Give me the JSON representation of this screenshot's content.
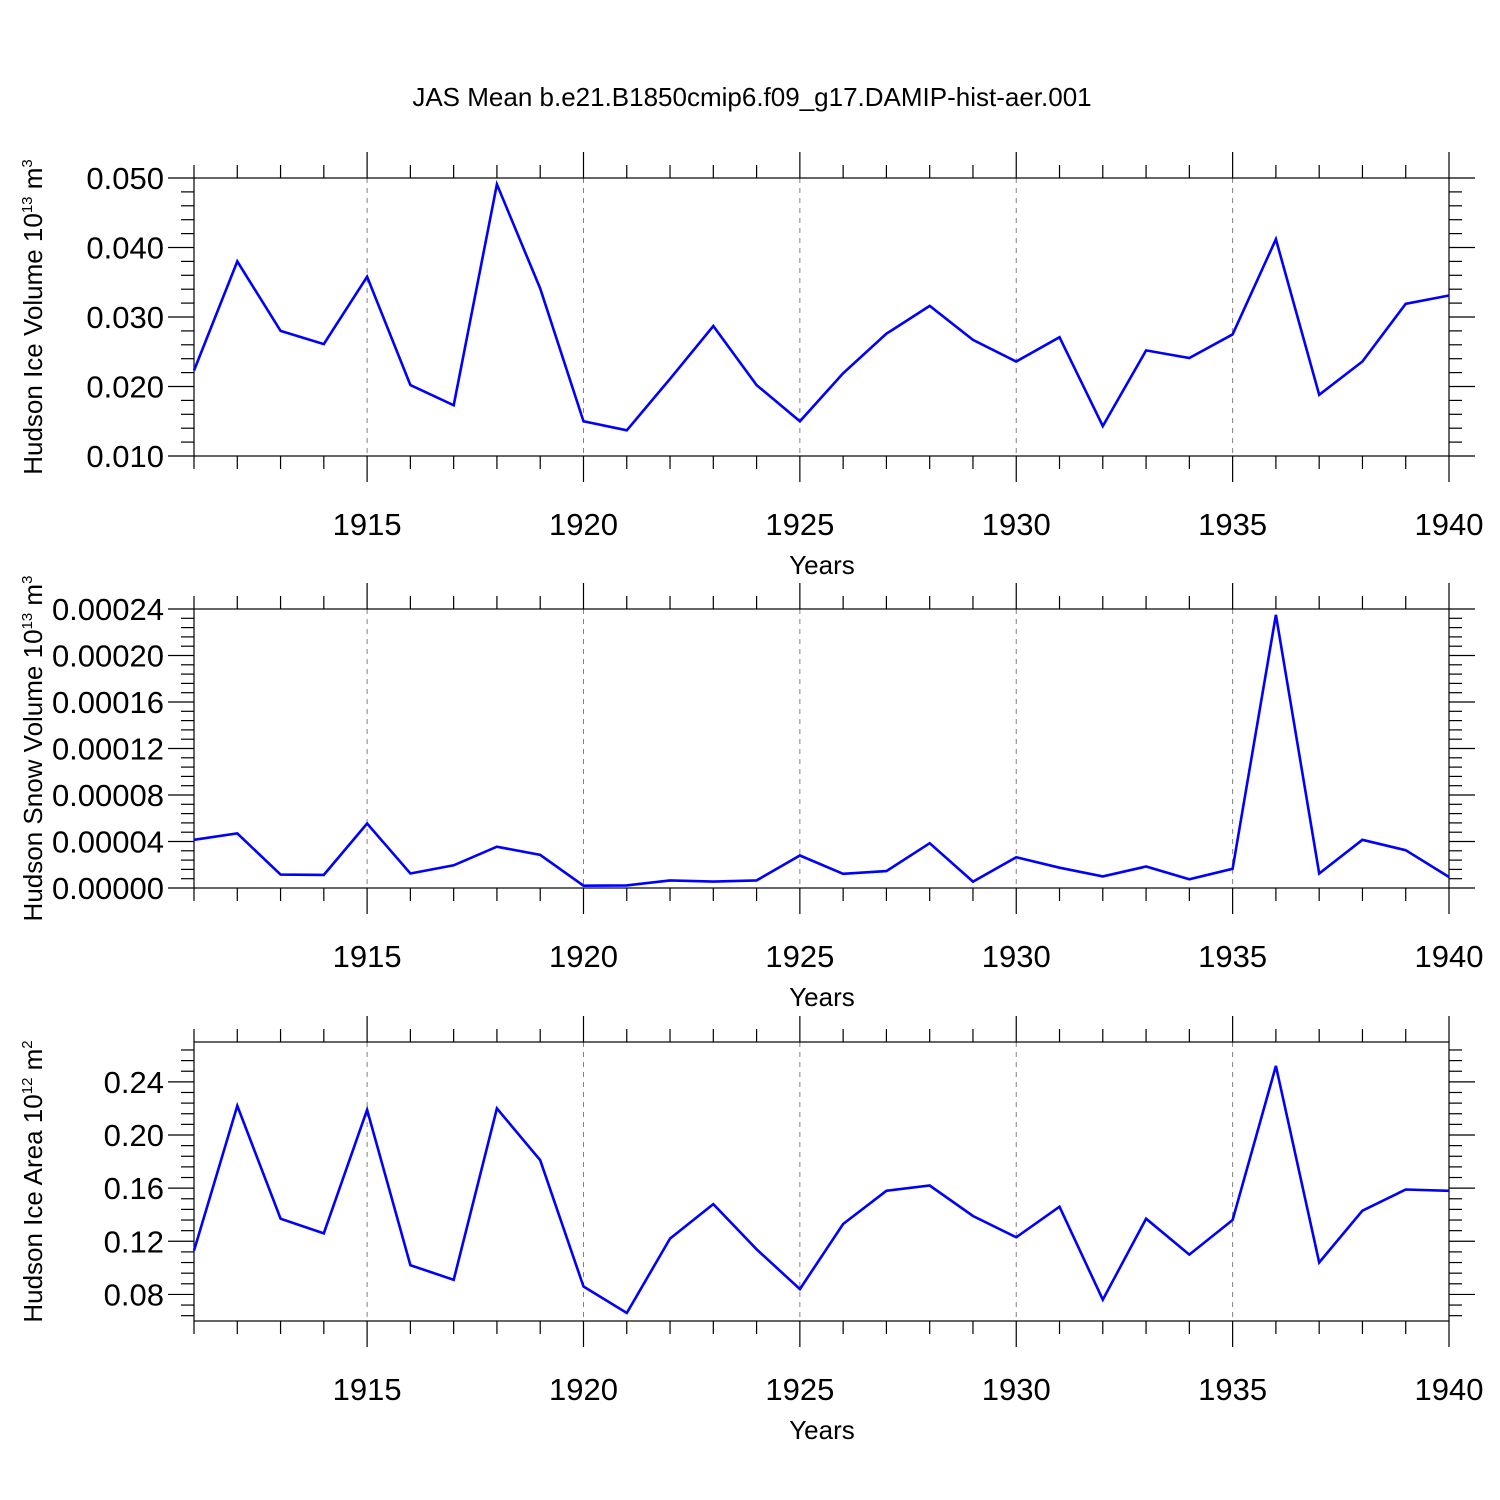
{
  "title": "JAS Mean b.e21.B1850cmip6.f09_g17.DAMIP-hist-aer.001",
  "colors": {
    "line": "#0000ff",
    "axis": "#000000",
    "grid": "#808080"
  },
  "chart_data": [
    {
      "type": "line",
      "ylabel": "Hudson Ice Volume 10",
      "ylabel_exp": "13",
      "ylabel_unit": " m",
      "ylabel_unit_exp": "3",
      "xlabel": "Years",
      "xlim": [
        1911,
        1940
      ],
      "ylim": [
        0.01,
        0.05
      ],
      "yticks": [
        0.01,
        0.02,
        0.03,
        0.04,
        0.05
      ],
      "ytick_labels": [
        "0.010",
        "0.020",
        "0.030",
        "0.040",
        "0.050"
      ],
      "xticks": [
        1915,
        1920,
        1925,
        1930,
        1935,
        1940
      ],
      "xtick_labels": [
        "1915",
        "1920",
        "1925",
        "1930",
        "1935",
        "1940"
      ],
      "grid": "vertical dashed at major x ticks",
      "x": [
        1911,
        1912,
        1913,
        1914,
        1915,
        1916,
        1917,
        1918,
        1919,
        1920,
        1921,
        1922,
        1923,
        1924,
        1925,
        1926,
        1927,
        1928,
        1929,
        1930,
        1931,
        1932,
        1933,
        1934,
        1935,
        1936,
        1937,
        1938,
        1939,
        1940
      ],
      "values": [
        0.0223,
        0.038,
        0.028,
        0.0261,
        0.0358,
        0.0202,
        0.0173,
        0.0491,
        0.0341,
        0.015,
        0.0137,
        0.0211,
        0.0287,
        0.0202,
        0.015,
        0.0219,
        0.0276,
        0.0316,
        0.0267,
        0.0236,
        0.0271,
        0.0143,
        0.0252,
        0.0241,
        0.0275,
        0.0412,
        0.0188,
        0.0236,
        0.0319,
        0.0331
      ]
    },
    {
      "type": "line",
      "ylabel": "Hudson Snow Volume 10",
      "ylabel_exp": "13",
      "ylabel_unit": " m",
      "ylabel_unit_exp": "3",
      "xlabel": "Years",
      "xlim": [
        1911,
        1940
      ],
      "ylim": [
        0.0,
        0.00024
      ],
      "yticks": [
        0.0,
        4e-05,
        8e-05,
        0.00012,
        0.00016,
        0.0002,
        0.00024
      ],
      "ytick_labels": [
        "0.00000",
        "0.00004",
        "0.00008",
        "0.00012",
        "0.00016",
        "0.00020",
        "0.00024"
      ],
      "xticks": [
        1915,
        1920,
        1925,
        1930,
        1935,
        1940
      ],
      "xtick_labels": [
        "1915",
        "1920",
        "1925",
        "1930",
        "1935",
        "1940"
      ],
      "grid": "vertical dashed at major x ticks",
      "x": [
        1911,
        1912,
        1913,
        1914,
        1915,
        1916,
        1917,
        1918,
        1919,
        1920,
        1921,
        1922,
        1923,
        1924,
        1925,
        1926,
        1927,
        1928,
        1929,
        1930,
        1931,
        1932,
        1933,
        1934,
        1935,
        1936,
        1937,
        1938,
        1939,
        1940
      ],
      "values": [
        4.15e-05,
        4.7e-05,
        1.15e-05,
        1.13e-05,
        5.55e-05,
        1.25e-05,
        1.95e-05,
        3.55e-05,
        2.85e-05,
        2e-06,
        2.2e-06,
        6.5e-06,
        5.5e-06,
        6.5e-06,
        2.8e-05,
        1.22e-05,
        1.45e-05,
        3.85e-05,
        5.5e-06,
        2.65e-05,
        1.75e-05,
        1e-05,
        1.85e-05,
        7.5e-06,
        1.65e-05,
        0.000235,
        1.25e-05,
        4.15e-05,
        3.25e-05,
        9.5e-06
      ]
    },
    {
      "type": "line",
      "ylabel": "Hudson Ice Area 10",
      "ylabel_exp": "12",
      "ylabel_unit": " m",
      "ylabel_unit_exp": "2",
      "xlabel": "Years",
      "xlim": [
        1911,
        1940
      ],
      "ylim": [
        0.06,
        0.27
      ],
      "yticks": [
        0.08,
        0.12,
        0.16,
        0.2,
        0.24
      ],
      "ytick_labels": [
        "0.08",
        "0.12",
        "0.16",
        "0.20",
        "0.24"
      ],
      "xticks": [
        1915,
        1920,
        1925,
        1930,
        1935,
        1940
      ],
      "xtick_labels": [
        "1915",
        "1920",
        "1925",
        "1930",
        "1935",
        "1940"
      ],
      "grid": "vertical dashed at major x ticks",
      "x": [
        1911,
        1912,
        1913,
        1914,
        1915,
        1916,
        1917,
        1918,
        1919,
        1920,
        1921,
        1922,
        1923,
        1924,
        1925,
        1926,
        1927,
        1928,
        1929,
        1930,
        1931,
        1932,
        1933,
        1934,
        1935,
        1936,
        1937,
        1938,
        1939,
        1940
      ],
      "values": [
        0.113,
        0.222,
        0.137,
        0.126,
        0.219,
        0.102,
        0.091,
        0.22,
        0.181,
        0.086,
        0.066,
        0.122,
        0.148,
        0.114,
        0.084,
        0.133,
        0.158,
        0.162,
        0.139,
        0.123,
        0.146,
        0.076,
        0.137,
        0.11,
        0.136,
        0.252,
        0.104,
        0.143,
        0.159,
        0.158
      ]
    }
  ]
}
